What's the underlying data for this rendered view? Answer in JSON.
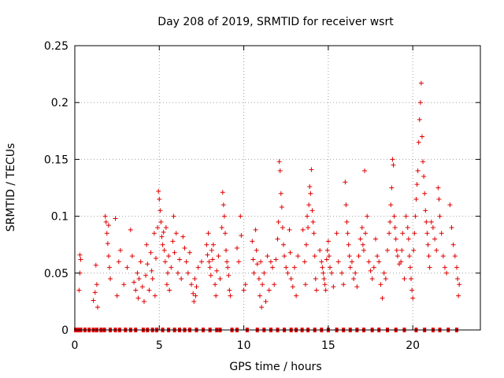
{
  "chart_data": {
    "type": "scatter",
    "title": "Day 208 of 2019, SRMTID for receiver wsrt",
    "xlabel": "GPS time / hours",
    "ylabel": "SRMTID / TECUs",
    "xlim": [
      0,
      24
    ],
    "ylim": [
      0,
      0.25
    ],
    "x_ticks": [
      0,
      5,
      10,
      15,
      20
    ],
    "x_tick_labels": [
      "0",
      "5",
      "10",
      "15",
      "20"
    ],
    "y_ticks": [
      0,
      0.05,
      0.1,
      0.15,
      0.2,
      0.25
    ],
    "y_tick_labels": [
      "0",
      "0.05",
      "0.1",
      "0.15",
      "0.2",
      "0.25"
    ],
    "grid": true,
    "series": [
      {
        "name": "SRMTID",
        "marker": "plus",
        "color": "#e00000",
        "points": [
          [
            0.25,
            0.035
          ],
          [
            0.3,
            0.05
          ],
          [
            0.3,
            0.066
          ],
          [
            0.35,
            0.062
          ],
          [
            1.1,
            0.026
          ],
          [
            1.2,
            0.033
          ],
          [
            1.25,
            0.057
          ],
          [
            1.3,
            0.04
          ],
          [
            1.35,
            0.02
          ],
          [
            1.8,
            0.1
          ],
          [
            1.85,
            0.095
          ],
          [
            1.9,
            0.085
          ],
          [
            1.95,
            0.076
          ],
          [
            2.0,
            0.065
          ],
          [
            2.0,
            0.092
          ],
          [
            2.05,
            0.055
          ],
          [
            2.1,
            0.045
          ],
          [
            2.4,
            0.098
          ],
          [
            2.5,
            0.03
          ],
          [
            2.6,
            0.06
          ],
          [
            2.7,
            0.07
          ],
          [
            2.9,
            0.04
          ],
          [
            3.1,
            0.055
          ],
          [
            3.3,
            0.088
          ],
          [
            3.4,
            0.065
          ],
          [
            3.5,
            0.042
          ],
          [
            3.6,
            0.035
          ],
          [
            3.7,
            0.05
          ],
          [
            3.75,
            0.028
          ],
          [
            3.8,
            0.045
          ],
          [
            3.9,
            0.06
          ],
          [
            4.0,
            0.038
          ],
          [
            4.1,
            0.025
          ],
          [
            4.2,
            0.048
          ],
          [
            4.25,
            0.075
          ],
          [
            4.3,
            0.058
          ],
          [
            4.4,
            0.035
          ],
          [
            4.5,
            0.068
          ],
          [
            4.55,
            0.052
          ],
          [
            4.6,
            0.045
          ],
          [
            4.7,
            0.085
          ],
          [
            4.75,
            0.03
          ],
          [
            4.8,
            0.063
          ],
          [
            4.9,
            0.09
          ],
          [
            4.95,
            0.122
          ],
          [
            5.0,
            0.115
          ],
          [
            5.05,
            0.105
          ],
          [
            5.1,
            0.095
          ],
          [
            5.15,
            0.082
          ],
          [
            5.2,
            0.075
          ],
          [
            5.25,
            0.086
          ],
          [
            5.3,
            0.07
          ],
          [
            5.35,
            0.06
          ],
          [
            5.4,
            0.09
          ],
          [
            5.45,
            0.04
          ],
          [
            5.5,
            0.05
          ],
          [
            5.55,
            0.065
          ],
          [
            5.6,
            0.035
          ],
          [
            5.7,
            0.055
          ],
          [
            5.8,
            0.078
          ],
          [
            5.85,
            0.1
          ],
          [
            5.9,
            0.068
          ],
          [
            6.0,
            0.085
          ],
          [
            6.1,
            0.05
          ],
          [
            6.2,
            0.062
          ],
          [
            6.3,
            0.045
          ],
          [
            6.4,
            0.082
          ],
          [
            6.5,
            0.072
          ],
          [
            6.6,
            0.06
          ],
          [
            6.7,
            0.05
          ],
          [
            6.8,
            0.068
          ],
          [
            6.9,
            0.04
          ],
          [
            7.0,
            0.032
          ],
          [
            7.05,
            0.025
          ],
          [
            7.1,
            0.045
          ],
          [
            7.15,
            0.03
          ],
          [
            7.2,
            0.038
          ],
          [
            7.3,
            0.055
          ],
          [
            7.5,
            0.06
          ],
          [
            7.8,
            0.075
          ],
          [
            7.85,
            0.066
          ],
          [
            7.9,
            0.085
          ],
          [
            7.95,
            0.06
          ],
          [
            8.0,
            0.055
          ],
          [
            8.05,
            0.048
          ],
          [
            8.1,
            0.07
          ],
          [
            8.15,
            0.062
          ],
          [
            8.2,
            0.075
          ],
          [
            8.3,
            0.04
          ],
          [
            8.35,
            0.03
          ],
          [
            8.4,
            0.052
          ],
          [
            8.5,
            0.065
          ],
          [
            8.6,
            0.045
          ],
          [
            8.7,
            0.09
          ],
          [
            8.75,
            0.121
          ],
          [
            8.8,
            0.11
          ],
          [
            8.85,
            0.1
          ],
          [
            8.9,
            0.085
          ],
          [
            8.95,
            0.07
          ],
          [
            9.0,
            0.06
          ],
          [
            9.05,
            0.055
          ],
          [
            9.1,
            0.048
          ],
          [
            9.15,
            0.035
          ],
          [
            9.2,
            0.03
          ],
          [
            9.6,
            0.072
          ],
          [
            9.7,
            0.06
          ],
          [
            9.8,
            0.1
          ],
          [
            9.85,
            0.083
          ],
          [
            10.0,
            0.035
          ],
          [
            10.1,
            0.04
          ],
          [
            10.5,
            0.078
          ],
          [
            10.55,
            0.062
          ],
          [
            10.6,
            0.05
          ],
          [
            10.7,
            0.088
          ],
          [
            10.75,
            0.07
          ],
          [
            10.8,
            0.058
          ],
          [
            10.9,
            0.045
          ],
          [
            10.95,
            0.03
          ],
          [
            11.0,
            0.06
          ],
          [
            11.05,
            0.02
          ],
          [
            11.1,
            0.04
          ],
          [
            11.2,
            0.05
          ],
          [
            11.3,
            0.025
          ],
          [
            11.4,
            0.065
          ],
          [
            11.5,
            0.035
          ],
          [
            11.6,
            0.06
          ],
          [
            11.7,
            0.055
          ],
          [
            11.8,
            0.04
          ],
          [
            11.9,
            0.062
          ],
          [
            12.0,
            0.08
          ],
          [
            12.05,
            0.095
          ],
          [
            12.1,
            0.148
          ],
          [
            12.15,
            0.14
          ],
          [
            12.2,
            0.12
          ],
          [
            12.25,
            0.108
          ],
          [
            12.3,
            0.09
          ],
          [
            12.35,
            0.075
          ],
          [
            12.4,
            0.065
          ],
          [
            12.5,
            0.055
          ],
          [
            12.6,
            0.05
          ],
          [
            12.7,
            0.088
          ],
          [
            12.75,
            0.068
          ],
          [
            12.8,
            0.045
          ],
          [
            12.9,
            0.038
          ],
          [
            13.0,
            0.055
          ],
          [
            13.1,
            0.03
          ],
          [
            13.2,
            0.065
          ],
          [
            13.5,
            0.088
          ],
          [
            13.6,
            0.06
          ],
          [
            13.65,
            0.04
          ],
          [
            13.7,
            0.075
          ],
          [
            13.75,
            0.1
          ],
          [
            13.8,
            0.09
          ],
          [
            13.85,
            0.11
          ],
          [
            13.9,
            0.126
          ],
          [
            13.95,
            0.12
          ],
          [
            14.0,
            0.141
          ],
          [
            14.05,
            0.105
          ],
          [
            14.1,
            0.095
          ],
          [
            14.15,
            0.085
          ],
          [
            14.2,
            0.065
          ],
          [
            14.25,
            0.045
          ],
          [
            14.3,
            0.035
          ],
          [
            14.5,
            0.07
          ],
          [
            14.6,
            0.06
          ],
          [
            14.65,
            0.055
          ],
          [
            14.7,
            0.05
          ],
          [
            14.75,
            0.045
          ],
          [
            14.8,
            0.04
          ],
          [
            14.85,
            0.035
          ],
          [
            14.9,
            0.062
          ],
          [
            14.95,
            0.07
          ],
          [
            15.0,
            0.078
          ],
          [
            15.05,
            0.065
          ],
          [
            15.1,
            0.055
          ],
          [
            15.2,
            0.05
          ],
          [
            15.3,
            0.038
          ],
          [
            15.5,
            0.085
          ],
          [
            15.6,
            0.06
          ],
          [
            15.8,
            0.05
          ],
          [
            15.9,
            0.04
          ],
          [
            16.0,
            0.13
          ],
          [
            16.05,
            0.11
          ],
          [
            16.1,
            0.095
          ],
          [
            16.15,
            0.085
          ],
          [
            16.2,
            0.075
          ],
          [
            16.25,
            0.065
          ],
          [
            16.3,
            0.055
          ],
          [
            16.4,
            0.06
          ],
          [
            16.5,
            0.045
          ],
          [
            16.6,
            0.05
          ],
          [
            16.7,
            0.038
          ],
          [
            16.8,
            0.065
          ],
          [
            16.9,
            0.08
          ],
          [
            17.0,
            0.09
          ],
          [
            17.05,
            0.075
          ],
          [
            17.1,
            0.07
          ],
          [
            17.15,
            0.14
          ],
          [
            17.2,
            0.085
          ],
          [
            17.3,
            0.1
          ],
          [
            17.4,
            0.06
          ],
          [
            17.5,
            0.052
          ],
          [
            17.6,
            0.045
          ],
          [
            17.7,
            0.055
          ],
          [
            17.8,
            0.08
          ],
          [
            17.9,
            0.065
          ],
          [
            18.0,
            0.06
          ],
          [
            18.1,
            0.04
          ],
          [
            18.2,
            0.028
          ],
          [
            18.3,
            0.05
          ],
          [
            18.4,
            0.045
          ],
          [
            18.5,
            0.07
          ],
          [
            18.6,
            0.085
          ],
          [
            18.65,
            0.095
          ],
          [
            18.7,
            0.11
          ],
          [
            18.75,
            0.125
          ],
          [
            18.8,
            0.15
          ],
          [
            18.85,
            0.145
          ],
          [
            18.9,
            0.1
          ],
          [
            18.95,
            0.09
          ],
          [
            19.0,
            0.08
          ],
          [
            19.05,
            0.07
          ],
          [
            19.1,
            0.065
          ],
          [
            19.2,
            0.058
          ],
          [
            19.3,
            0.06
          ],
          [
            19.35,
            0.07
          ],
          [
            19.4,
            0.085
          ],
          [
            19.5,
            0.045
          ],
          [
            19.6,
            0.1
          ],
          [
            19.7,
            0.09
          ],
          [
            19.75,
            0.08
          ],
          [
            19.8,
            0.065
          ],
          [
            19.85,
            0.055
          ],
          [
            19.9,
            0.045
          ],
          [
            19.95,
            0.035
          ],
          [
            20.0,
            0.028
          ],
          [
            20.05,
            0.07
          ],
          [
            20.1,
            0.085
          ],
          [
            20.15,
            0.1
          ],
          [
            20.2,
            0.115
          ],
          [
            20.25,
            0.128
          ],
          [
            20.3,
            0.14
          ],
          [
            20.35,
            0.165
          ],
          [
            20.4,
            0.185
          ],
          [
            20.45,
            0.2
          ],
          [
            20.5,
            0.217
          ],
          [
            20.55,
            0.17
          ],
          [
            20.6,
            0.148
          ],
          [
            20.65,
            0.135
          ],
          [
            20.7,
            0.12
          ],
          [
            20.75,
            0.105
          ],
          [
            20.8,
            0.095
          ],
          [
            20.85,
            0.085
          ],
          [
            20.9,
            0.075
          ],
          [
            20.95,
            0.065
          ],
          [
            21.0,
            0.055
          ],
          [
            21.1,
            0.095
          ],
          [
            21.2,
            0.09
          ],
          [
            21.3,
            0.08
          ],
          [
            21.4,
            0.07
          ],
          [
            21.5,
            0.125
          ],
          [
            21.55,
            0.115
          ],
          [
            21.6,
            0.1
          ],
          [
            21.7,
            0.085
          ],
          [
            21.8,
            0.065
          ],
          [
            21.9,
            0.055
          ],
          [
            22.0,
            0.05
          ],
          [
            22.2,
            0.11
          ],
          [
            22.3,
            0.09
          ],
          [
            22.4,
            0.075
          ],
          [
            22.5,
            0.065
          ],
          [
            22.6,
            0.055
          ],
          [
            22.65,
            0.045
          ],
          [
            22.7,
            0.03
          ],
          [
            22.75,
            0.04
          ]
        ]
      }
    ],
    "zero_points": [
      0.05,
      0.2,
      0.35,
      0.6,
      0.85,
      1.1,
      1.3,
      1.55,
      1.75,
      2.1,
      2.4,
      2.65,
      3.0,
      3.3,
      3.6,
      4.05,
      4.3,
      4.6,
      4.85,
      5.2,
      5.55,
      5.9,
      6.2,
      6.5,
      6.8,
      7.2,
      7.6,
      8.0,
      8.4,
      8.6,
      9.3,
      9.6,
      10.2,
      10.8,
      11.2,
      11.6,
      12.0,
      12.4,
      12.8,
      13.1,
      13.45,
      13.8,
      14.2,
      14.6,
      15.0,
      15.5,
      15.9,
      16.3,
      16.7,
      17.1,
      17.6,
      18.0,
      18.5,
      19.0,
      19.5,
      20.2,
      20.7,
      21.2,
      21.6,
      22.1,
      22.6
    ]
  }
}
